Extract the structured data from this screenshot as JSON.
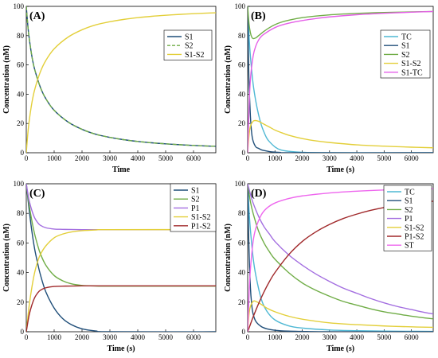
{
  "colors": {
    "S1": "#1f4e79",
    "S2": "#70ad47",
    "S1S2": "#e3cf3a",
    "TC": "#4fb8d4",
    "S1TC": "#e55fe8",
    "P1": "#a36ee0",
    "P1S2": "#a0282a",
    "ST": "#ee66ee"
  },
  "chart_data": [
    {
      "type": "line",
      "label": "(A)",
      "xlabel": "Time",
      "ylabel": "Concentration (nM)",
      "xlim": [
        0,
        6800
      ],
      "ylim": [
        0,
        100
      ],
      "xticks": [
        "0",
        "1000",
        "2000",
        "3000",
        "4000",
        "5000",
        "6000"
      ],
      "yticks": [
        "0",
        "20",
        "40",
        "60",
        "80",
        "100"
      ],
      "legend": "top-right",
      "series": [
        {
          "name": "S1",
          "color_key": "S1",
          "dash": "solid",
          "x": [
            0,
            50,
            100,
            200,
            300,
            500,
            700,
            1000,
            1500,
            2000,
            2500,
            3000,
            3500,
            4000,
            4500,
            5000,
            5500,
            6000,
            6500,
            6800
          ],
          "y": [
            100,
            88,
            79,
            66,
            57,
            45,
            37,
            29,
            21,
            16,
            12.6,
            10.5,
            8.9,
            7.7,
            6.8,
            6.1,
            5.5,
            5.0,
            4.6,
            4.4
          ]
        },
        {
          "name": "S2",
          "color_key": "S2",
          "dash": "dashed",
          "x": [
            0,
            50,
            100,
            200,
            300,
            500,
            700,
            1000,
            1500,
            2000,
            2500,
            3000,
            3500,
            4000,
            4500,
            5000,
            5500,
            6000,
            6500,
            6800
          ],
          "y": [
            100,
            88,
            79,
            66,
            57,
            45,
            37,
            29,
            21,
            16,
            12.6,
            10.5,
            8.9,
            7.7,
            6.8,
            6.1,
            5.5,
            5.0,
            4.6,
            4.4
          ]
        },
        {
          "name": "S1-S2",
          "color_key": "S1S2",
          "dash": "solid",
          "x": [
            0,
            50,
            100,
            200,
            300,
            500,
            700,
            1000,
            1500,
            2000,
            2500,
            3000,
            3500,
            4000,
            4500,
            5000,
            5500,
            6000,
            6500,
            6800
          ],
          "y": [
            0,
            12,
            21,
            34,
            43,
            55,
            63,
            71,
            79,
            84,
            87.4,
            89.5,
            91.1,
            92.3,
            93.2,
            93.9,
            94.5,
            95.0,
            95.4,
            95.6
          ]
        }
      ]
    },
    {
      "type": "line",
      "label": "(B)",
      "xlabel": "Time (s)",
      "ylabel": "Concentration (nM)",
      "xlim": [
        0,
        6800
      ],
      "ylim": [
        0,
        100
      ],
      "xticks": [
        "0",
        "1000",
        "2000",
        "3000",
        "4000",
        "5000",
        "6000"
      ],
      "yticks": [
        "0",
        "20",
        "40",
        "60",
        "80",
        "100"
      ],
      "legend": "top-right",
      "series": [
        {
          "name": "TC",
          "color_key": "TC",
          "dash": "solid",
          "x": [
            0,
            50,
            100,
            200,
            300,
            400,
            500,
            600,
            700,
            800,
            1000,
            1200,
            1500,
            2000,
            3000,
            6800
          ],
          "y": [
            100,
            80,
            66,
            47,
            35,
            26,
            19,
            14,
            10,
            7.5,
            4,
            2,
            1,
            0.3,
            0,
            0
          ]
        },
        {
          "name": "S1",
          "color_key": "S1",
          "dash": "solid",
          "x": [
            0,
            25,
            50,
            100,
            150,
            200,
            300,
            400,
            500,
            600,
            800,
            1000,
            1200,
            1500,
            6800
          ],
          "y": [
            100,
            70,
            48,
            25,
            13,
            8,
            4,
            3,
            2,
            1.5,
            0.8,
            0.4,
            0.2,
            0,
            0
          ]
        },
        {
          "name": "S2",
          "color_key": "S2",
          "dash": "solid",
          "x": [
            0,
            50,
            100,
            150,
            200,
            300,
            400,
            500,
            600,
            800,
            1000,
            1200,
            1500,
            2000,
            3000,
            4000,
            5000,
            6000,
            6800
          ],
          "y": [
            100,
            88,
            82,
            79,
            78,
            78.5,
            80,
            81.5,
            83,
            85.5,
            87.5,
            89,
            90.5,
            92.3,
            94.2,
            95.2,
            95.8,
            96.2,
            96.5
          ]
        },
        {
          "name": "S1-S2",
          "color_key": "S1S2",
          "dash": "solid",
          "x": [
            0,
            50,
            100,
            200,
            300,
            400,
            500,
            600,
            800,
            1000,
            1200,
            1500,
            2000,
            2500,
            3000,
            4000,
            5000,
            6000,
            6800
          ],
          "y": [
            0,
            12,
            18,
            21.5,
            22,
            21.5,
            20.5,
            19.5,
            17.5,
            15.5,
            14,
            12,
            9.7,
            8.1,
            7,
            5.4,
            4.5,
            3.8,
            3.4
          ]
        },
        {
          "name": "S1-TC",
          "color_key": "S1TC",
          "dash": "solid",
          "x": [
            0,
            50,
            100,
            200,
            300,
            400,
            500,
            600,
            800,
            1000,
            1200,
            1500,
            2000,
            2500,
            3000,
            4000,
            5000,
            6000,
            6800
          ],
          "y": [
            0,
            30,
            50,
            66,
            73,
            77,
            79.5,
            81,
            83.5,
            85.5,
            87,
            88.5,
            90.3,
            91.7,
            92.8,
            94.3,
            95.3,
            96,
            96.5
          ]
        }
      ]
    },
    {
      "type": "line",
      "label": "(C)",
      "xlabel": "Time (s)",
      "ylabel": "Concentration (nM)",
      "xlim": [
        0,
        6800
      ],
      "ylim": [
        0,
        100
      ],
      "xticks": [
        "0",
        "1000",
        "2000",
        "3000",
        "4000",
        "5000",
        "6000"
      ],
      "yticks": [
        "0",
        "20",
        "40",
        "60",
        "80",
        "100"
      ],
      "legend": "top-right",
      "series": [
        {
          "name": "S1",
          "color_key": "S1",
          "dash": "solid",
          "x": [
            0,
            100,
            200,
            300,
            400,
            500,
            700,
            1000,
            1300,
            1600,
            2000,
            2500,
            3000,
            6800
          ],
          "y": [
            100,
            83,
            68,
            56,
            47,
            39,
            27,
            16,
            9,
            5,
            2,
            0.5,
            0,
            0
          ]
        },
        {
          "name": "S2",
          "color_key": "S2",
          "dash": "solid",
          "x": [
            0,
            100,
            200,
            300,
            400,
            500,
            700,
            1000,
            1300,
            1600,
            2000,
            2500,
            3000,
            4000,
            6800
          ],
          "y": [
            100,
            86,
            75,
            66,
            59,
            53,
            45,
            38,
            34.5,
            32.5,
            31.3,
            30.9,
            30.8,
            30.8,
            30.8
          ]
        },
        {
          "name": "P1",
          "color_key": "P1",
          "dash": "solid",
          "x": [
            0,
            100,
            200,
            300,
            400,
            500,
            700,
            1000,
            1300,
            1600,
            2000,
            2500,
            3000,
            6800
          ],
          "y": [
            100,
            89,
            82,
            77,
            74,
            72,
            70.3,
            69.4,
            69.2,
            69.1,
            69,
            69,
            69,
            69
          ]
        },
        {
          "name": "S1-S2",
          "color_key": "S1S2",
          "dash": "solid",
          "x": [
            0,
            100,
            200,
            300,
            400,
            500,
            700,
            1000,
            1300,
            1600,
            2000,
            2500,
            3000,
            6800
          ],
          "y": [
            0,
            17,
            30,
            40,
            47,
            52,
            58,
            63.5,
            66,
            67.4,
            68.3,
            68.8,
            69,
            69
          ]
        },
        {
          "name": "P1-S2",
          "color_key": "P1S2",
          "dash": "solid",
          "x": [
            0,
            100,
            200,
            300,
            400,
            500,
            700,
            1000,
            1300,
            1600,
            2000,
            2500,
            3000,
            6800
          ],
          "y": [
            0,
            11,
            18,
            23,
            26,
            28,
            29.7,
            30.6,
            30.8,
            30.9,
            31,
            31,
            31,
            31
          ]
        }
      ]
    },
    {
      "type": "line",
      "label": "(D)",
      "xlabel": "Time (s)",
      "ylabel": "Concentration (nM)",
      "xlim": [
        0,
        6800
      ],
      "ylim": [
        0,
        100
      ],
      "xticks": [
        "0",
        "1000",
        "2000",
        "3000",
        "4000",
        "5000",
        "6000"
      ],
      "yticks": [
        "0",
        "20",
        "40",
        "60",
        "80",
        "100"
      ],
      "legend": "right",
      "series": [
        {
          "name": "TC",
          "color_key": "TC",
          "dash": "solid",
          "x": [
            0,
            50,
            100,
            200,
            300,
            500,
            700,
            1000,
            1500,
            2000,
            3000,
            4000,
            5000,
            6000,
            6800
          ],
          "y": [
            100,
            82,
            69,
            50,
            38,
            22,
            14,
            8,
            4,
            2.5,
            1.2,
            0.7,
            0.4,
            0.3,
            0.2
          ]
        },
        {
          "name": "S1",
          "color_key": "S1",
          "dash": "solid",
          "x": [
            0,
            25,
            50,
            100,
            150,
            200,
            300,
            500,
            700,
            1000,
            1500,
            2000,
            3000,
            6800
          ],
          "y": [
            100,
            75,
            55,
            30,
            18,
            12,
            7,
            3.5,
            2,
            1,
            0.4,
            0.2,
            0,
            0
          ]
        },
        {
          "name": "S2",
          "color_key": "S2",
          "dash": "solid",
          "x": [
            0,
            100,
            200,
            400,
            600,
            800,
            1000,
            1500,
            2000,
            2500,
            3000,
            3500,
            4000,
            4500,
            5000,
            5500,
            6000,
            6500,
            6800
          ],
          "y": [
            100,
            88,
            80,
            68,
            60,
            54,
            49,
            40,
            33,
            28,
            24,
            20.5,
            18,
            15.5,
            13.5,
            12,
            10.5,
            9.3,
            8.7
          ]
        },
        {
          "name": "P1",
          "color_key": "P1",
          "dash": "solid",
          "x": [
            0,
            100,
            200,
            400,
            600,
            800,
            1000,
            1500,
            2000,
            2500,
            3000,
            3500,
            4000,
            4500,
            5000,
            5500,
            6000,
            6500,
            6800
          ],
          "y": [
            100,
            93,
            87,
            78,
            71,
            66,
            61,
            52,
            45,
            39,
            34,
            29.5,
            26,
            22.5,
            19.5,
            17,
            15,
            13,
            12
          ]
        },
        {
          "name": "S1-S2",
          "color_key": "S1S2",
          "dash": "solid",
          "x": [
            0,
            50,
            100,
            200,
            300,
            500,
            700,
            1000,
            1500,
            2000,
            3000,
            4000,
            5000,
            6000,
            6800
          ],
          "y": [
            0,
            12,
            17,
            20.5,
            20.5,
            18.5,
            16,
            13.5,
            10.5,
            8.5,
            6,
            4.8,
            3.9,
            3.3,
            3
          ]
        },
        {
          "name": "P1-S2",
          "color_key": "P1S2",
          "dash": "solid",
          "x": [
            0,
            100,
            200,
            400,
            600,
            800,
            1000,
            1500,
            2000,
            2500,
            3000,
            3500,
            4000,
            4500,
            5000,
            5500,
            6000,
            6500,
            6800
          ],
          "y": [
            0,
            5,
            10,
            19,
            27,
            34,
            40,
            52,
            61,
            67.5,
            72.5,
            76.5,
            79.5,
            82,
            84,
            85.5,
            86.7,
            87.7,
            88.2
          ]
        },
        {
          "name": "ST",
          "color_key": "ST",
          "dash": "solid",
          "x": [
            0,
            50,
            100,
            200,
            300,
            500,
            700,
            1000,
            1500,
            2000,
            3000,
            4000,
            5000,
            6000,
            6800
          ],
          "y": [
            0,
            25,
            42,
            61,
            70,
            79,
            83.5,
            87,
            90,
            91.8,
            93.8,
            95,
            95.8,
            96.3,
            96.7
          ]
        }
      ]
    }
  ]
}
